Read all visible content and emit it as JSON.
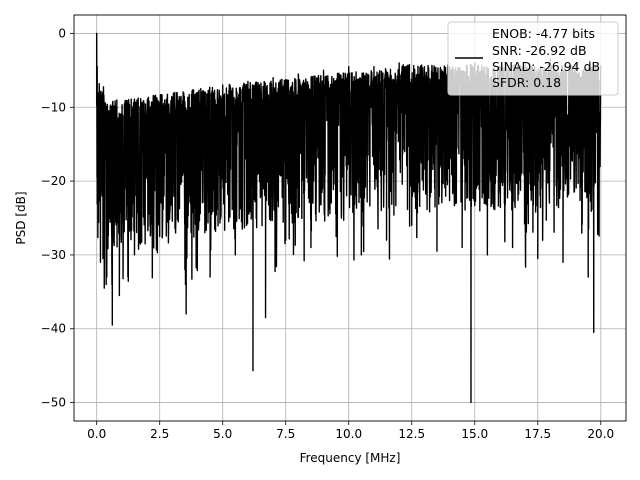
{
  "chart_data": {
    "type": "line",
    "xlabel": "Frequency [MHz]",
    "ylabel": "PSD [dB]",
    "xlim": [
      -0.9,
      21.0
    ],
    "ylim": [
      -52.5,
      2.5
    ],
    "xticks": [
      0.0,
      2.5,
      5.0,
      7.5,
      10.0,
      12.5,
      15.0,
      17.5,
      20.0
    ],
    "xtick_labels": [
      "0.0",
      "2.5",
      "5.0",
      "7.5",
      "10.0",
      "12.5",
      "15.0",
      "17.5",
      "20.0"
    ],
    "yticks": [
      0,
      -10,
      -20,
      -30,
      -40,
      -50
    ],
    "ytick_labels": [
      "0",
      "−10",
      "−20",
      "−30",
      "−40",
      "−50"
    ],
    "grid": true,
    "legend": {
      "placement": "upper-right",
      "entries": [
        "ENOB: -4.77 bits",
        "SNR: -26.92 dB",
        "SINAD: -26.94 dB",
        "SFDR: 0.18"
      ]
    },
    "series": [
      {
        "color": "#000000",
        "note_points": "dense noise trace; approximate envelope samples",
        "x": [
          0.0,
          0.02,
          0.05,
          0.1,
          0.15,
          0.2,
          0.25,
          0.3,
          0.35,
          0.4,
          0.5,
          0.6,
          0.62,
          0.8,
          0.9,
          1.0,
          1.5,
          2.0,
          2.5,
          3.0,
          3.5,
          3.55,
          4.0,
          4.5,
          5.0,
          5.5,
          6.0,
          6.2,
          6.5,
          6.7,
          7.0,
          7.5,
          8.0,
          8.5,
          9.0,
          9.5,
          10.0,
          10.5,
          11.0,
          11.5,
          12.0,
          12.5,
          13.0,
          13.5,
          14.0,
          14.5,
          14.85,
          15.0,
          15.5,
          16.0,
          16.5,
          17.0,
          17.5,
          18.0,
          18.5,
          19.0,
          19.5,
          19.72,
          20.0
        ],
        "y": [
          0.0,
          -4.5,
          -20.0,
          -6.8,
          -31.0,
          -8.5,
          -30.5,
          -34.5,
          -9.5,
          -33.0,
          -10.5,
          -30.0,
          -39.5,
          -9.0,
          -35.5,
          -12.0,
          -30.0,
          -10.5,
          -27.5,
          -9.0,
          -32.0,
          -38.0,
          -8.0,
          -33.0,
          -7.0,
          -30.0,
          -6.5,
          -45.7,
          -7.5,
          -38.5,
          -6.0,
          -28.0,
          -5.5,
          -29.0,
          -5.0,
          -27.5,
          -4.5,
          -30.0,
          -4.5,
          -28.0,
          -4.0,
          -26.0,
          -4.5,
          -29.5,
          -4.5,
          -29.0,
          -50.0,
          -4.0,
          -30.0,
          -4.5,
          -29.0,
          -4.0,
          -30.5,
          -3.5,
          -31.0,
          -5.0,
          -33.0,
          -40.5,
          -4.5
        ]
      }
    ]
  }
}
